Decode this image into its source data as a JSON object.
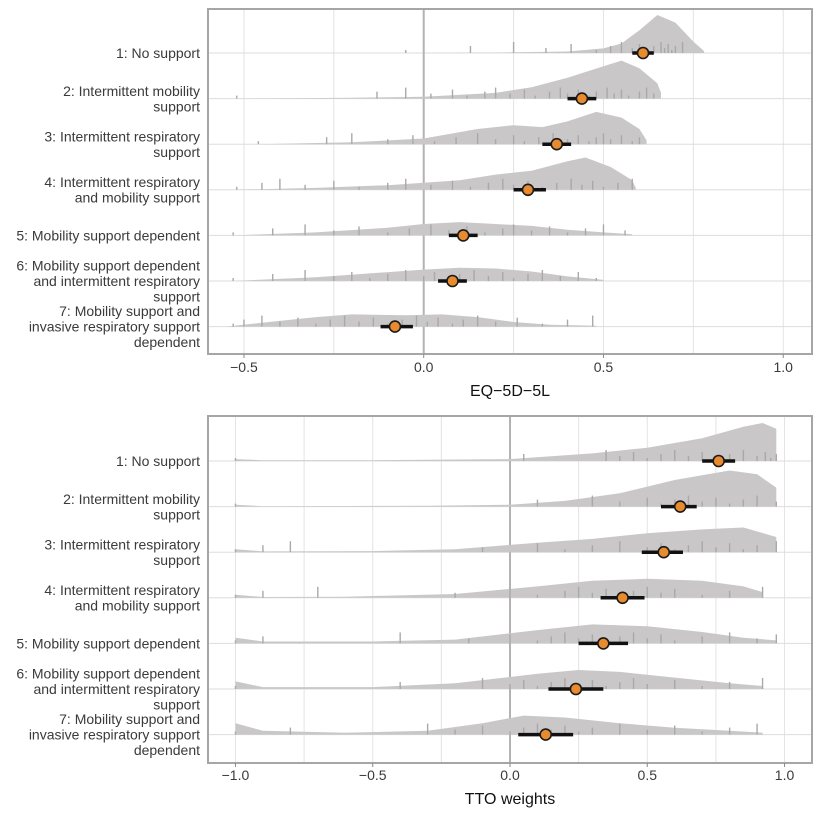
{
  "chart_data": [
    {
      "type": "raincloud",
      "xlabel": "EQ−5D−5L",
      "xlim": [
        -0.6,
        1.08
      ],
      "xticks": [
        -0.5,
        0.0,
        0.5,
        1.0
      ],
      "xtick_labels": [
        "−0.5",
        "0.0",
        "0.5",
        "1.0"
      ],
      "reference_line": 0.0,
      "categories": [
        {
          "label": [
            "1: No support"
          ],
          "mean": 0.61,
          "ci": [
            0.58,
            0.64
          ],
          "density": [
            [
              -0.05,
              0.0
            ],
            [
              0.2,
              0.01
            ],
            [
              0.4,
              0.04
            ],
            [
              0.5,
              0.12
            ],
            [
              0.55,
              0.25
            ],
            [
              0.6,
              0.6
            ],
            [
              0.65,
              1.0
            ],
            [
              0.7,
              0.8
            ],
            [
              0.75,
              0.3
            ],
            [
              0.78,
              0.05
            ]
          ],
          "ticks": [
            -0.05,
            0.13,
            0.25,
            0.34,
            0.41,
            0.48,
            0.52,
            0.55,
            0.58,
            0.6,
            0.62,
            0.64,
            0.66,
            0.67,
            0.68,
            0.69,
            0.7,
            0.72
          ]
        },
        {
          "label": [
            "2: Intermittent mobility",
            "support"
          ],
          "mean": 0.44,
          "ci": [
            0.4,
            0.48
          ],
          "density": [
            [
              -0.53,
              0.0
            ],
            [
              -0.2,
              0.02
            ],
            [
              0.0,
              0.05
            ],
            [
              0.2,
              0.15
            ],
            [
              0.3,
              0.3
            ],
            [
              0.4,
              0.55
            ],
            [
              0.5,
              0.85
            ],
            [
              0.55,
              1.0
            ],
            [
              0.6,
              0.8
            ],
            [
              0.65,
              0.4
            ],
            [
              0.66,
              0.15
            ]
          ],
          "ticks": [
            -0.52,
            -0.13,
            -0.05,
            0.02,
            0.08,
            0.12,
            0.17,
            0.2,
            0.24,
            0.28,
            0.31,
            0.35,
            0.38,
            0.4,
            0.43,
            0.46,
            0.48,
            0.51,
            0.53,
            0.55,
            0.57,
            0.6,
            0.62,
            0.64
          ]
        },
        {
          "label": [
            "3: Intermittent respiratory",
            "support"
          ],
          "mean": 0.37,
          "ci": [
            0.33,
            0.41
          ],
          "density": [
            [
              -0.46,
              0.0
            ],
            [
              -0.2,
              0.05
            ],
            [
              0.0,
              0.15
            ],
            [
              0.15,
              0.4
            ],
            [
              0.25,
              0.5
            ],
            [
              0.33,
              0.45
            ],
            [
              0.4,
              0.6
            ],
            [
              0.48,
              0.85
            ],
            [
              0.55,
              0.7
            ],
            [
              0.6,
              0.4
            ],
            [
              0.62,
              0.1
            ]
          ],
          "ticks": [
            -0.46,
            -0.27,
            -0.2,
            -0.1,
            -0.03,
            0.03,
            0.09,
            0.15,
            0.2,
            0.25,
            0.28,
            0.32,
            0.36,
            0.4,
            0.43,
            0.46,
            0.48,
            0.5,
            0.52,
            0.55,
            0.58,
            0.6
          ]
        },
        {
          "label": [
            "4: Intermittent respiratory",
            "and mobility support"
          ],
          "mean": 0.29,
          "ci": [
            0.25,
            0.34
          ],
          "density": [
            [
              -0.53,
              0.0
            ],
            [
              -0.3,
              0.05
            ],
            [
              -0.1,
              0.12
            ],
            [
              0.1,
              0.25
            ],
            [
              0.2,
              0.4
            ],
            [
              0.3,
              0.5
            ],
            [
              0.4,
              0.75
            ],
            [
              0.45,
              0.85
            ],
            [
              0.52,
              0.6
            ],
            [
              0.58,
              0.25
            ],
            [
              0.59,
              0.05
            ]
          ],
          "ticks": [
            -0.52,
            -0.45,
            -0.4,
            -0.33,
            -0.25,
            -0.18,
            -0.1,
            -0.05,
            0.02,
            0.08,
            0.13,
            0.18,
            0.22,
            0.25,
            0.29,
            0.33,
            0.37,
            0.41,
            0.44,
            0.47,
            0.5,
            0.54,
            0.58
          ]
        },
        {
          "label": [
            "5: Mobility support dependent"
          ],
          "mean": 0.11,
          "ci": [
            0.07,
            0.15
          ],
          "density": [
            [
              -0.53,
              0.0
            ],
            [
              -0.3,
              0.08
            ],
            [
              -0.1,
              0.2
            ],
            [
              0.0,
              0.3
            ],
            [
              0.1,
              0.35
            ],
            [
              0.2,
              0.3
            ],
            [
              0.3,
              0.25
            ],
            [
              0.4,
              0.15
            ],
            [
              0.5,
              0.08
            ],
            [
              0.58,
              0.03
            ]
          ],
          "ticks": [
            -0.53,
            -0.42,
            -0.33,
            -0.25,
            -0.18,
            -0.1,
            -0.04,
            0.02,
            0.07,
            0.12,
            0.17,
            0.22,
            0.25,
            0.3,
            0.35,
            0.4,
            0.45,
            0.5,
            0.56
          ]
        },
        {
          "label": [
            "6: Mobility support dependent",
            "and intermittent respiratory",
            "support"
          ],
          "mean": 0.08,
          "ci": [
            0.04,
            0.12
          ],
          "density": [
            [
              -0.53,
              0.0
            ],
            [
              -0.3,
              0.1
            ],
            [
              -0.15,
              0.2
            ],
            [
              0.0,
              0.3
            ],
            [
              0.1,
              0.35
            ],
            [
              0.2,
              0.33
            ],
            [
              0.3,
              0.25
            ],
            [
              0.4,
              0.12
            ],
            [
              0.5,
              0.03
            ]
          ],
          "ticks": [
            -0.53,
            -0.42,
            -0.33,
            -0.25,
            -0.2,
            -0.15,
            -0.1,
            -0.05,
            0.0,
            0.03,
            0.07,
            0.1,
            0.14,
            0.18,
            0.22,
            0.25,
            0.29,
            0.33,
            0.38,
            0.43,
            0.48
          ]
        },
        {
          "label": [
            "7: Mobility support and",
            "invasive respiratory support",
            "dependent"
          ],
          "mean": -0.08,
          "ci": [
            -0.12,
            -0.03
          ],
          "density": [
            [
              -0.55,
              0.0
            ],
            [
              -0.45,
              0.1
            ],
            [
              -0.3,
              0.25
            ],
            [
              -0.2,
              0.32
            ],
            [
              -0.05,
              0.3
            ],
            [
              0.05,
              0.32
            ],
            [
              0.15,
              0.25
            ],
            [
              0.25,
              0.12
            ],
            [
              0.35,
              0.05
            ],
            [
              0.48,
              0.02
            ]
          ],
          "ticks": [
            -0.53,
            -0.5,
            -0.45,
            -0.4,
            -0.35,
            -0.3,
            -0.26,
            -0.22,
            -0.18,
            -0.14,
            -0.1,
            -0.06,
            -0.02,
            0.01,
            0.04,
            0.08,
            0.11,
            0.15,
            0.2,
            0.26,
            0.33,
            0.4,
            0.47
          ]
        }
      ]
    },
    {
      "type": "raincloud",
      "xlabel": "TTO weights",
      "xlim": [
        -1.1,
        1.1
      ],
      "xticks": [
        -1.0,
        -0.5,
        0.0,
        0.5,
        1.0
      ],
      "xtick_labels": [
        "−1.0",
        "−0.5",
        "0.0",
        "0.5",
        "1.0"
      ],
      "reference_line": 0.0,
      "categories": [
        {
          "label": [
            "1: No support"
          ],
          "mean": 0.76,
          "ci": [
            0.7,
            0.82
          ],
          "density": [
            [
              -1.0,
              0.05
            ],
            [
              -0.9,
              0.02
            ],
            [
              -0.5,
              0.02
            ],
            [
              0.0,
              0.05
            ],
            [
              0.3,
              0.2
            ],
            [
              0.5,
              0.35
            ],
            [
              0.7,
              0.6
            ],
            [
              0.85,
              0.9
            ],
            [
              0.92,
              1.0
            ],
            [
              0.97,
              0.85
            ]
          ],
          "ticks": [
            -1.0,
            0.05,
            0.35,
            0.4,
            0.45,
            0.5,
            0.55,
            0.6,
            0.65,
            0.7,
            0.75,
            0.8,
            0.85,
            0.9,
            0.93,
            0.95,
            0.97
          ]
        },
        {
          "label": [
            "2: Intermittent mobility",
            "support"
          ],
          "mean": 0.62,
          "ci": [
            0.55,
            0.68
          ],
          "density": [
            [
              -1.0,
              0.05
            ],
            [
              -0.9,
              0.01
            ],
            [
              -0.3,
              0.02
            ],
            [
              0.0,
              0.05
            ],
            [
              0.2,
              0.15
            ],
            [
              0.4,
              0.35
            ],
            [
              0.6,
              0.7
            ],
            [
              0.8,
              0.95
            ],
            [
              0.9,
              0.85
            ],
            [
              0.97,
              0.5
            ]
          ],
          "ticks": [
            -1.0,
            0.1,
            0.3,
            0.4,
            0.5,
            0.55,
            0.6,
            0.65,
            0.7,
            0.75,
            0.8,
            0.85,
            0.9,
            0.97
          ]
        },
        {
          "label": [
            "3: Intermittent respiratory",
            "support"
          ],
          "mean": 0.56,
          "ci": [
            0.48,
            0.63
          ],
          "density": [
            [
              -1.0,
              0.08
            ],
            [
              -0.9,
              0.02
            ],
            [
              -0.5,
              0.03
            ],
            [
              -0.2,
              0.08
            ],
            [
              0.1,
              0.25
            ],
            [
              0.3,
              0.35
            ],
            [
              0.5,
              0.5
            ],
            [
              0.7,
              0.6
            ],
            [
              0.85,
              0.65
            ],
            [
              0.97,
              0.4
            ]
          ],
          "ticks": [
            -1.0,
            -0.9,
            -0.8,
            -0.1,
            0.1,
            0.2,
            0.3,
            0.4,
            0.5,
            0.55,
            0.6,
            0.65,
            0.7,
            0.75,
            0.8,
            0.85,
            0.9,
            0.97
          ]
        },
        {
          "label": [
            "4: Intermittent respiratory",
            "and mobility support"
          ],
          "mean": 0.41,
          "ci": [
            0.33,
            0.49
          ],
          "density": [
            [
              -1.0,
              0.08
            ],
            [
              -0.9,
              0.02
            ],
            [
              -0.6,
              0.03
            ],
            [
              -0.2,
              0.1
            ],
            [
              0.1,
              0.3
            ],
            [
              0.3,
              0.45
            ],
            [
              0.5,
              0.5
            ],
            [
              0.7,
              0.45
            ],
            [
              0.85,
              0.3
            ],
            [
              0.92,
              0.15
            ]
          ],
          "ticks": [
            -1.0,
            -0.9,
            -0.7,
            -0.2,
            0.0,
            0.1,
            0.2,
            0.25,
            0.3,
            0.35,
            0.4,
            0.45,
            0.5,
            0.55,
            0.6,
            0.7,
            0.8,
            0.92
          ]
        },
        {
          "label": [
            "5: Mobility support dependent"
          ],
          "mean": 0.34,
          "ci": [
            0.25,
            0.43
          ],
          "density": [
            [
              -1.0,
              0.15
            ],
            [
              -0.9,
              0.05
            ],
            [
              -0.5,
              0.05
            ],
            [
              -0.2,
              0.1
            ],
            [
              0.1,
              0.35
            ],
            [
              0.3,
              0.5
            ],
            [
              0.5,
              0.45
            ],
            [
              0.7,
              0.3
            ],
            [
              0.85,
              0.15
            ],
            [
              0.97,
              0.08
            ]
          ],
          "ticks": [
            -1.0,
            -0.9,
            -0.4,
            -0.15,
            0.0,
            0.1,
            0.15,
            0.2,
            0.25,
            0.3,
            0.35,
            0.4,
            0.45,
            0.5,
            0.55,
            0.6,
            0.7,
            0.8,
            0.9,
            0.97
          ]
        },
        {
          "label": [
            "6: Mobility support dependent",
            "and intermittent respiratory",
            "support"
          ],
          "mean": 0.24,
          "ci": [
            0.14,
            0.34
          ],
          "density": [
            [
              -1.0,
              0.2
            ],
            [
              -0.9,
              0.05
            ],
            [
              -0.5,
              0.05
            ],
            [
              -0.2,
              0.15
            ],
            [
              0.1,
              0.4
            ],
            [
              0.25,
              0.5
            ],
            [
              0.4,
              0.45
            ],
            [
              0.6,
              0.3
            ],
            [
              0.8,
              0.15
            ],
            [
              0.92,
              0.08
            ]
          ],
          "ticks": [
            -1.0,
            -0.4,
            -0.1,
            0.0,
            0.05,
            0.1,
            0.15,
            0.2,
            0.25,
            0.3,
            0.35,
            0.4,
            0.45,
            0.5,
            0.6,
            0.7,
            0.8,
            0.92
          ]
        },
        {
          "label": [
            "7: Mobility support and",
            "invasive respiratory support",
            "dependent"
          ],
          "mean": 0.13,
          "ci": [
            0.03,
            0.23
          ],
          "density": [
            [
              -1.0,
              0.3
            ],
            [
              -0.9,
              0.1
            ],
            [
              -0.6,
              0.05
            ],
            [
              -0.3,
              0.1
            ],
            [
              -0.1,
              0.3
            ],
            [
              0.05,
              0.5
            ],
            [
              0.2,
              0.45
            ],
            [
              0.4,
              0.3
            ],
            [
              0.6,
              0.18
            ],
            [
              0.8,
              0.1
            ],
            [
              0.92,
              0.05
            ]
          ],
          "ticks": [
            -1.0,
            -0.8,
            -0.3,
            -0.2,
            -0.1,
            0.0,
            0.05,
            0.1,
            0.15,
            0.2,
            0.25,
            0.3,
            0.4,
            0.5,
            0.6,
            0.7,
            0.8,
            0.9
          ]
        }
      ]
    }
  ]
}
